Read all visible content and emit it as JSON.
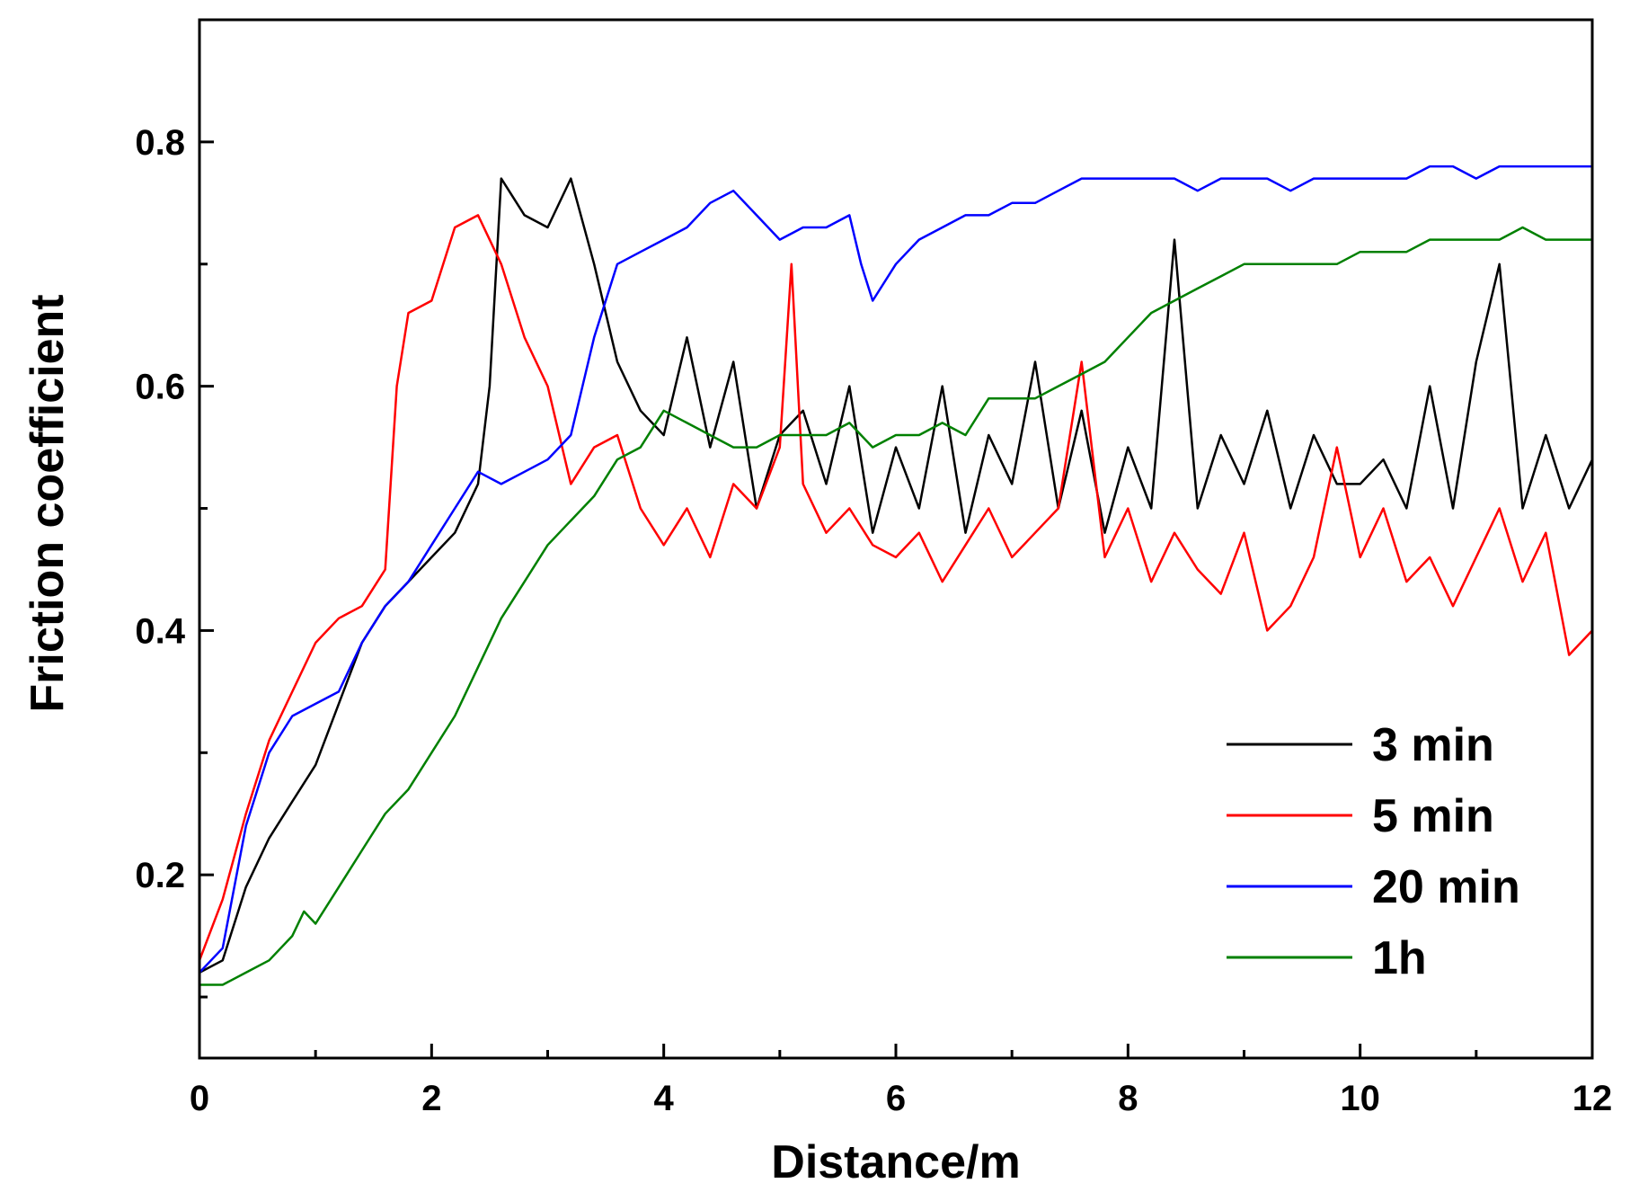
{
  "chart_data": {
    "type": "line",
    "title": "",
    "xlabel": "Distance/m",
    "ylabel": "Friction coefficient",
    "xlim": [
      0,
      12
    ],
    "ylim": [
      0.05,
      0.9
    ],
    "x_ticks": [
      0,
      2,
      4,
      6,
      8,
      10,
      12
    ],
    "x_tick_labels": [
      "0",
      "2",
      "4",
      "6",
      "8",
      "10",
      "12"
    ],
    "y_ticks": [
      0.2,
      0.4,
      0.6,
      0.8
    ],
    "y_tick_labels": [
      "0.2",
      "0.4",
      "0.6",
      "0.8"
    ],
    "grid": false,
    "legend_position": "lower-right",
    "series": [
      {
        "name": "3 min",
        "color": "#000000",
        "x": [
          0,
          0.2,
          0.4,
          0.6,
          0.8,
          1.0,
          1.2,
          1.4,
          1.6,
          1.8,
          2.0,
          2.2,
          2.4,
          2.5,
          2.6,
          2.8,
          3.0,
          3.2,
          3.4,
          3.6,
          3.8,
          4.0,
          4.2,
          4.4,
          4.6,
          4.8,
          5.0,
          5.2,
          5.4,
          5.6,
          5.8,
          6.0,
          6.2,
          6.4,
          6.6,
          6.8,
          7.0,
          7.2,
          7.4,
          7.6,
          7.8,
          8.0,
          8.2,
          8.4,
          8.6,
          8.8,
          9.0,
          9.2,
          9.4,
          9.6,
          9.8,
          10.0,
          10.2,
          10.4,
          10.6,
          10.8,
          11.0,
          11.2,
          11.4,
          11.6,
          11.8,
          12.0
        ],
        "y": [
          0.12,
          0.13,
          0.19,
          0.23,
          0.26,
          0.29,
          0.34,
          0.39,
          0.42,
          0.44,
          0.46,
          0.48,
          0.52,
          0.6,
          0.77,
          0.74,
          0.73,
          0.77,
          0.7,
          0.62,
          0.58,
          0.56,
          0.64,
          0.55,
          0.62,
          0.5,
          0.56,
          0.58,
          0.52,
          0.6,
          0.48,
          0.55,
          0.5,
          0.6,
          0.48,
          0.56,
          0.52,
          0.62,
          0.5,
          0.58,
          0.48,
          0.55,
          0.5,
          0.72,
          0.5,
          0.56,
          0.52,
          0.58,
          0.5,
          0.56,
          0.52,
          0.52,
          0.54,
          0.5,
          0.6,
          0.5,
          0.62,
          0.7,
          0.5,
          0.56,
          0.5,
          0.54
        ]
      },
      {
        "name": "5 min",
        "color": "#ff0000",
        "x": [
          0,
          0.2,
          0.4,
          0.6,
          0.8,
          1.0,
          1.2,
          1.4,
          1.6,
          1.7,
          1.8,
          2.0,
          2.2,
          2.4,
          2.6,
          2.8,
          3.0,
          3.2,
          3.4,
          3.6,
          3.8,
          4.0,
          4.2,
          4.4,
          4.6,
          4.8,
          5.0,
          5.1,
          5.2,
          5.4,
          5.6,
          5.8,
          6.0,
          6.2,
          6.4,
          6.6,
          6.8,
          7.0,
          7.2,
          7.4,
          7.6,
          7.8,
          8.0,
          8.2,
          8.4,
          8.6,
          8.8,
          9.0,
          9.2,
          9.4,
          9.6,
          9.8,
          10.0,
          10.2,
          10.4,
          10.6,
          10.8,
          11.0,
          11.2,
          11.4,
          11.6,
          11.8,
          12.0
        ],
        "y": [
          0.13,
          0.18,
          0.25,
          0.31,
          0.35,
          0.39,
          0.41,
          0.42,
          0.45,
          0.6,
          0.66,
          0.67,
          0.73,
          0.74,
          0.7,
          0.64,
          0.6,
          0.52,
          0.55,
          0.56,
          0.5,
          0.47,
          0.5,
          0.46,
          0.52,
          0.5,
          0.55,
          0.7,
          0.52,
          0.48,
          0.5,
          0.47,
          0.46,
          0.48,
          0.44,
          0.47,
          0.5,
          0.46,
          0.48,
          0.5,
          0.62,
          0.46,
          0.5,
          0.44,
          0.48,
          0.45,
          0.43,
          0.48,
          0.4,
          0.42,
          0.46,
          0.55,
          0.46,
          0.5,
          0.44,
          0.46,
          0.42,
          0.46,
          0.5,
          0.44,
          0.48,
          0.38,
          0.4
        ]
      },
      {
        "name": "20 min",
        "color": "#0000ff",
        "x": [
          0,
          0.2,
          0.4,
          0.6,
          0.8,
          1.0,
          1.2,
          1.4,
          1.6,
          1.8,
          2.0,
          2.2,
          2.4,
          2.6,
          2.8,
          3.0,
          3.2,
          3.4,
          3.6,
          3.8,
          4.0,
          4.2,
          4.4,
          4.6,
          4.8,
          5.0,
          5.2,
          5.4,
          5.6,
          5.7,
          5.8,
          6.0,
          6.2,
          6.4,
          6.6,
          6.8,
          7.0,
          7.2,
          7.4,
          7.6,
          7.8,
          8.0,
          8.2,
          8.4,
          8.6,
          8.8,
          9.0,
          9.2,
          9.4,
          9.6,
          9.8,
          10.0,
          10.2,
          10.4,
          10.6,
          10.8,
          11.0,
          11.2,
          11.4,
          11.6,
          11.8,
          12.0
        ],
        "y": [
          0.12,
          0.14,
          0.24,
          0.3,
          0.33,
          0.34,
          0.35,
          0.39,
          0.42,
          0.44,
          0.47,
          0.5,
          0.53,
          0.52,
          0.53,
          0.54,
          0.56,
          0.64,
          0.7,
          0.71,
          0.72,
          0.73,
          0.75,
          0.76,
          0.74,
          0.72,
          0.73,
          0.73,
          0.74,
          0.7,
          0.67,
          0.7,
          0.72,
          0.73,
          0.74,
          0.74,
          0.75,
          0.75,
          0.76,
          0.77,
          0.77,
          0.77,
          0.77,
          0.77,
          0.76,
          0.77,
          0.77,
          0.77,
          0.76,
          0.77,
          0.77,
          0.77,
          0.77,
          0.77,
          0.78,
          0.78,
          0.77,
          0.78,
          0.78,
          0.78,
          0.78,
          0.78
        ]
      },
      {
        "name": "1h",
        "color": "#008000",
        "x": [
          0,
          0.2,
          0.4,
          0.6,
          0.8,
          0.9,
          1.0,
          1.2,
          1.4,
          1.6,
          1.8,
          2.0,
          2.2,
          2.4,
          2.6,
          2.8,
          3.0,
          3.2,
          3.4,
          3.6,
          3.8,
          4.0,
          4.2,
          4.4,
          4.6,
          4.8,
          5.0,
          5.2,
          5.4,
          5.6,
          5.8,
          6.0,
          6.2,
          6.4,
          6.6,
          6.8,
          7.0,
          7.2,
          7.4,
          7.6,
          7.8,
          8.0,
          8.2,
          8.4,
          8.6,
          8.8,
          9.0,
          9.2,
          9.4,
          9.6,
          9.8,
          10.0,
          10.2,
          10.4,
          10.6,
          10.8,
          11.0,
          11.2,
          11.4,
          11.6,
          11.8,
          12.0
        ],
        "y": [
          0.11,
          0.11,
          0.12,
          0.13,
          0.15,
          0.17,
          0.16,
          0.19,
          0.22,
          0.25,
          0.27,
          0.3,
          0.33,
          0.37,
          0.41,
          0.44,
          0.47,
          0.49,
          0.51,
          0.54,
          0.55,
          0.58,
          0.57,
          0.56,
          0.55,
          0.55,
          0.56,
          0.56,
          0.56,
          0.57,
          0.55,
          0.56,
          0.56,
          0.57,
          0.56,
          0.59,
          0.59,
          0.59,
          0.6,
          0.61,
          0.62,
          0.64,
          0.66,
          0.67,
          0.68,
          0.69,
          0.7,
          0.7,
          0.7,
          0.7,
          0.7,
          0.71,
          0.71,
          0.71,
          0.72,
          0.72,
          0.72,
          0.72,
          0.73,
          0.72,
          0.72,
          0.72
        ]
      }
    ]
  }
}
